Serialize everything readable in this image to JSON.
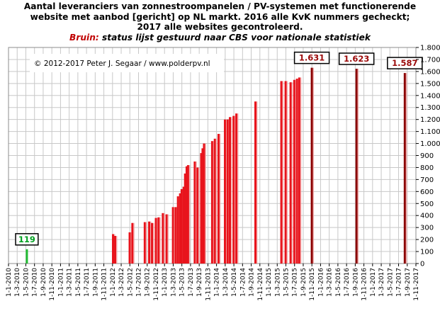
{
  "title": {
    "line1": "Aantal leveranciers van zonnestroompanelen  / PV-systemen met functionerende",
    "line2": "website met aanbod [gericht] op NL markt. 2016 alle KvK nummers gecheckt;",
    "line3": "2017 alle websites gecontroleerd.",
    "line4_prefix": "Bruin:",
    "line4_rest": " status lijst gestuurd naar CBS voor nationale statistiek"
  },
  "copyright": "© 2012-2017 Peter J. Segaar / www.polderpv.nl",
  "colors": {
    "bar_red": "#e8141c",
    "bar_dark": "#8b0000",
    "bar_green": "#22bb33",
    "label_green": "#00a020",
    "label_red": "#9b0a0a",
    "grid": "#c8c8c8"
  },
  "chart_data": {
    "type": "bar",
    "ylim": [
      0,
      1800
    ],
    "yticks": [
      0,
      100,
      200,
      300,
      400,
      500,
      600,
      700,
      800,
      900,
      1000,
      1100,
      1200,
      1300,
      1400,
      1500,
      1600,
      1700,
      1800
    ],
    "ytick_labels": [
      "0",
      "100",
      "200",
      "300",
      "400",
      "500",
      "600",
      "700",
      "800",
      "900",
      "1.000",
      "1.100",
      "1.200",
      "1.300",
      "1.400",
      "1.500",
      "1.600",
      "1.700",
      "1.800"
    ],
    "xlim": [
      "2010-01-01",
      "2017-11-01"
    ],
    "xtick_labels": [
      "1-1-2010",
      "1-3-2010",
      "1-5-2010",
      "1-7-2010",
      "1-9-2010",
      "1-11-2010",
      "1-1-2011",
      "1-3-2011",
      "1-5-2011",
      "1-7-2011",
      "1-9-2011",
      "1-11-2011",
      "1-1-2012",
      "1-3-2012",
      "1-5-2012",
      "1-7-2012",
      "1-9-2012",
      "1-11-2012",
      "1-1-2013",
      "1-3-2013",
      "1-5-2013",
      "1-7-2013",
      "1-9-2013",
      "1-11-2013",
      "1-1-2014",
      "1-3-2014",
      "1-5-2014",
      "1-7-2014",
      "1-9-2014",
      "1-11-2014",
      "1-1-2015",
      "1-3-2015",
      "1-5-2015",
      "1-7-2015",
      "1-9-2015",
      "1-11-2015",
      "1-1-2016",
      "1-3-2016",
      "1-5-2016",
      "1-7-2016",
      "1-9-2016",
      "1-11-2016",
      "1-1-2017",
      "1-3-2017",
      "1-5-2017",
      "1-7-2017",
      "1-9-2017",
      "1-11-2017"
    ],
    "series": [
      {
        "kind": "green",
        "points": [
          {
            "x": "2010-05-10",
            "y": 119,
            "label": "119"
          }
        ]
      },
      {
        "kind": "red",
        "points": [
          {
            "x": "2012-01-05",
            "y": 245
          },
          {
            "x": "2012-01-20",
            "y": 230
          },
          {
            "x": "2012-05-01",
            "y": 260
          },
          {
            "x": "2012-05-20",
            "y": 338
          },
          {
            "x": "2012-08-15",
            "y": 345
          },
          {
            "x": "2012-09-15",
            "y": 350
          },
          {
            "x": "2012-10-05",
            "y": 338
          },
          {
            "x": "2012-11-01",
            "y": 380
          },
          {
            "x": "2012-11-20",
            "y": 385
          },
          {
            "x": "2012-12-20",
            "y": 420
          },
          {
            "x": "2013-01-15",
            "y": 410
          },
          {
            "x": "2013-03-01",
            "y": 470
          },
          {
            "x": "2013-03-20",
            "y": 470
          },
          {
            "x": "2013-04-05",
            "y": 560
          },
          {
            "x": "2013-04-20",
            "y": 585
          },
          {
            "x": "2013-05-01",
            "y": 620
          },
          {
            "x": "2013-05-15",
            "y": 640
          },
          {
            "x": "2013-05-25",
            "y": 750
          },
          {
            "x": "2013-06-05",
            "y": 810
          },
          {
            "x": "2013-06-15",
            "y": 820
          },
          {
            "x": "2013-08-01",
            "y": 850
          },
          {
            "x": "2013-08-20",
            "y": 800
          },
          {
            "x": "2013-09-15",
            "y": 920
          },
          {
            "x": "2013-09-25",
            "y": 960
          },
          {
            "x": "2013-10-05",
            "y": 1000
          },
          {
            "x": "2013-12-01",
            "y": 1020
          },
          {
            "x": "2013-12-20",
            "y": 1040
          },
          {
            "x": "2014-01-15",
            "y": 1080
          },
          {
            "x": "2014-03-01",
            "y": 1200
          },
          {
            "x": "2014-03-20",
            "y": 1200
          },
          {
            "x": "2014-04-05",
            "y": 1220
          },
          {
            "x": "2014-05-01",
            "y": 1230
          },
          {
            "x": "2014-05-20",
            "y": 1250
          },
          {
            "x": "2014-10-01",
            "y": 1350
          },
          {
            "x": "2015-04-01",
            "y": 1520
          },
          {
            "x": "2015-05-01",
            "y": 1520
          },
          {
            "x": "2015-06-05",
            "y": 1510
          },
          {
            "x": "2015-07-01",
            "y": 1530
          },
          {
            "x": "2015-07-20",
            "y": 1540
          },
          {
            "x": "2015-08-05",
            "y": 1550
          }
        ]
      },
      {
        "kind": "dark",
        "points": [
          {
            "x": "2015-11-01",
            "y": 1631,
            "label": "1.631"
          },
          {
            "x": "2016-09-10",
            "y": 1623,
            "label": "1.623"
          },
          {
            "x": "2017-08-15",
            "y": 1587,
            "label": "1.587"
          }
        ]
      }
    ]
  }
}
